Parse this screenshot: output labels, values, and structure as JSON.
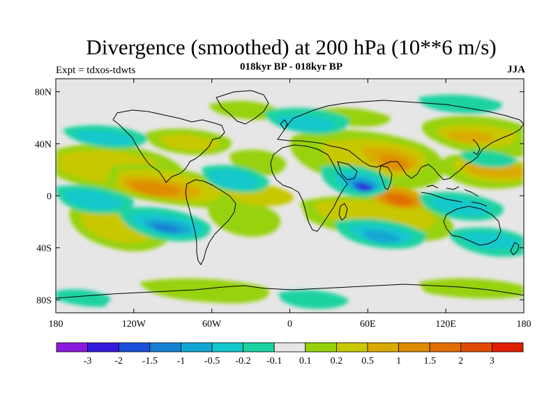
{
  "map": {
    "title": "Divergence (smoothed) at 200 hPa (10**6 m/s)",
    "subtitle": "018kyr BP - 018kyr BP",
    "left_label": "Expt = tdxos-tdwts",
    "right_label": "JJA",
    "projection": "cylindrical equidistant",
    "lon_range": [
      -180,
      180
    ],
    "lat_range": [
      -90,
      90
    ],
    "lon_ticks": [
      "180",
      "120W",
      "60W",
      "0",
      "60E",
      "120E",
      "180"
    ],
    "lat_ticks": [
      "80N",
      "40N",
      "0",
      "40S",
      "80S"
    ],
    "background_color": "#e6e6e6",
    "coastline_color": "#000000"
  },
  "colorbar": {
    "colors": [
      "#8c1adc",
      "#3519dc",
      "#1a4fd9",
      "#1480d2",
      "#12a6d2",
      "#13c8cc",
      "#1ad3a0",
      "#e6e6e6",
      "#96d20a",
      "#c8c800",
      "#d9aa00",
      "#de8c00",
      "#e06e00",
      "#e14b00",
      "#e01e00"
    ],
    "labels": [
      "-3",
      "-2",
      "-1.5",
      "-1",
      "-0.5",
      "-0.2",
      "-0.1",
      "0.1",
      "0.2",
      "0.5",
      "1",
      "1.5",
      "2",
      "3"
    ]
  }
}
